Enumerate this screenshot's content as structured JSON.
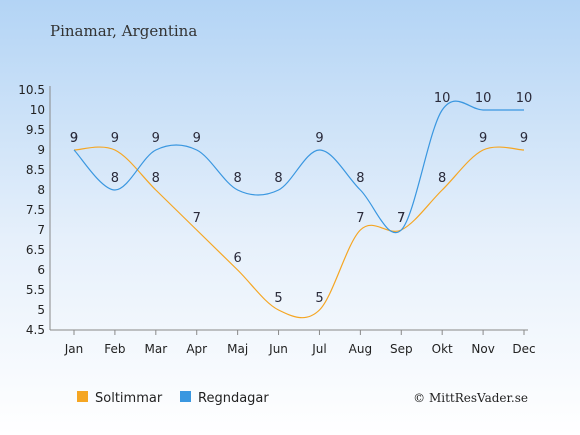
{
  "chart_data": {
    "type": "line",
    "title": "Pinamar, Argentina",
    "categories": [
      "Jan",
      "Feb",
      "Mar",
      "Apr",
      "Maj",
      "Jun",
      "Jul",
      "Aug",
      "Sep",
      "Okt",
      "Nov",
      "Dec"
    ],
    "y_ticks": [
      "10.5",
      "10",
      "9.5",
      "9",
      "8.5",
      "8",
      "7.5",
      "7",
      "6.5",
      "6",
      "5.5",
      "5",
      "4.5"
    ],
    "ylim": [
      4.5,
      10.5
    ],
    "grid": false,
    "legend_position": "bottom-left",
    "series": [
      {
        "name": "Soltimmar",
        "color": "#f5a623",
        "values": [
          9,
          9,
          8,
          7,
          6,
          5,
          5,
          7,
          7,
          8,
          9,
          9
        ]
      },
      {
        "name": "Regndagar",
        "color": "#3a97e0",
        "values": [
          9,
          8,
          9,
          9,
          8,
          8,
          9,
          8,
          7,
          10,
          10,
          10
        ]
      }
    ]
  },
  "copyright": "© MittResVader.se"
}
